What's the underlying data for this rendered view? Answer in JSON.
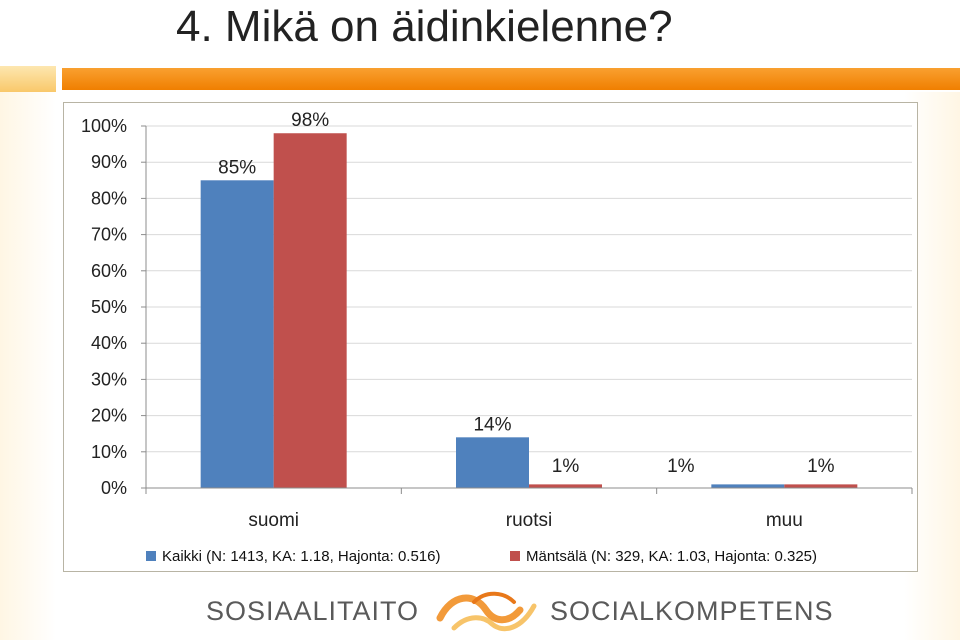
{
  "title": "4. Mikä on äidinkielenne?",
  "colors": {
    "accent_orange": "#f07f00",
    "series_kaikki": "#4f81bd",
    "series_mantsala": "#c0504d",
    "logo_gray": "#5a5a5a"
  },
  "legend": [
    {
      "label": "Kaikki (N: 1413, KA: 1.18, Hajonta: 0.516)",
      "color": "#4f81bd"
    },
    {
      "label": "Mäntsälä (N: 329, KA: 1.03, Hajonta: 0.325)",
      "color": "#c0504d"
    }
  ],
  "footer": {
    "left_text": "SOSIAALITAITO",
    "right_text": "SOCIALKOMPETENS",
    "logo_icon": "swirl-logo-icon"
  },
  "chart_data": {
    "type": "bar",
    "categories": [
      "suomi",
      "ruotsi",
      "muu"
    ],
    "series": [
      {
        "name": "Kaikki (N: 1413, KA: 1.18, Hajonta: 0.516)",
        "values": [
          85,
          14,
          1
        ],
        "labels": [
          "85%",
          "14%",
          ""
        ]
      },
      {
        "name": "Mäntsälä (N: 329, KA: 1.03, Hajonta: 0.325)",
        "values": [
          98,
          1,
          1
        ],
        "labels": [
          "98%",
          "1%",
          "1%"
        ]
      }
    ],
    "extra_labels": [
      "1%"
    ],
    "yticks": [
      "0%",
      "10%",
      "20%",
      "30%",
      "40%",
      "50%",
      "60%",
      "70%",
      "80%",
      "90%",
      "100%"
    ],
    "ylim": [
      0,
      100
    ],
    "grid": true,
    "legend_position": "bottom"
  }
}
